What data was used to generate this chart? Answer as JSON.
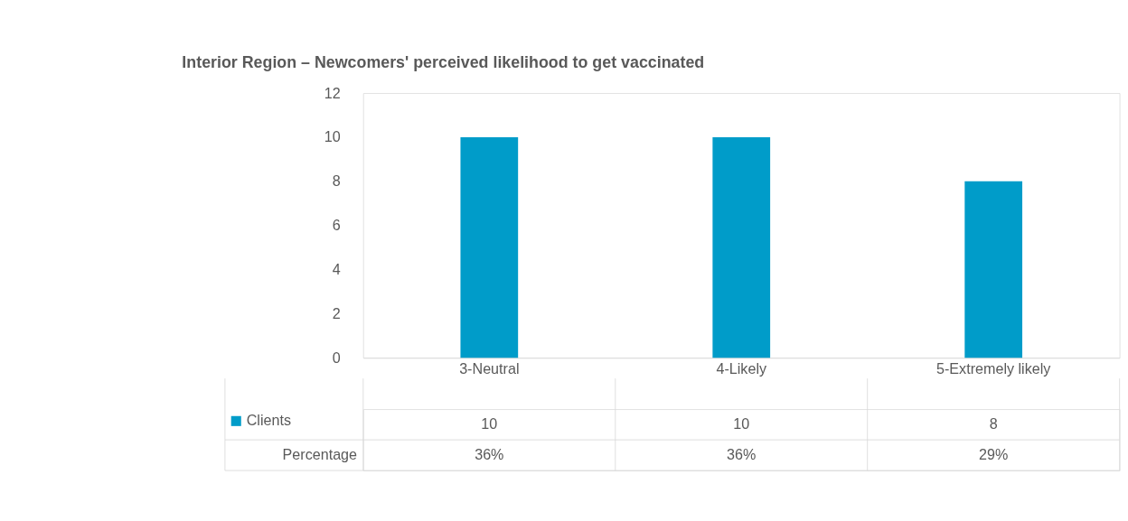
{
  "chart_data": {
    "type": "bar",
    "title": "Interior Region – Newcomers' perceived likelihood to get vaccinated",
    "categories": [
      "3-Neutral",
      "4-Likely",
      "5-Extremely likely"
    ],
    "series": [
      {
        "name": "Clients",
        "color": "#009cc9",
        "values": [
          10,
          10,
          8
        ]
      }
    ],
    "ylim": [
      0,
      12
    ],
    "yticks": [
      0,
      2,
      4,
      6,
      8,
      10,
      12
    ],
    "grid": false,
    "data_labels": true,
    "legend": "bottom",
    "annotations": [
      "Percentage",
      "36%",
      "36%",
      "29%"
    ]
  }
}
